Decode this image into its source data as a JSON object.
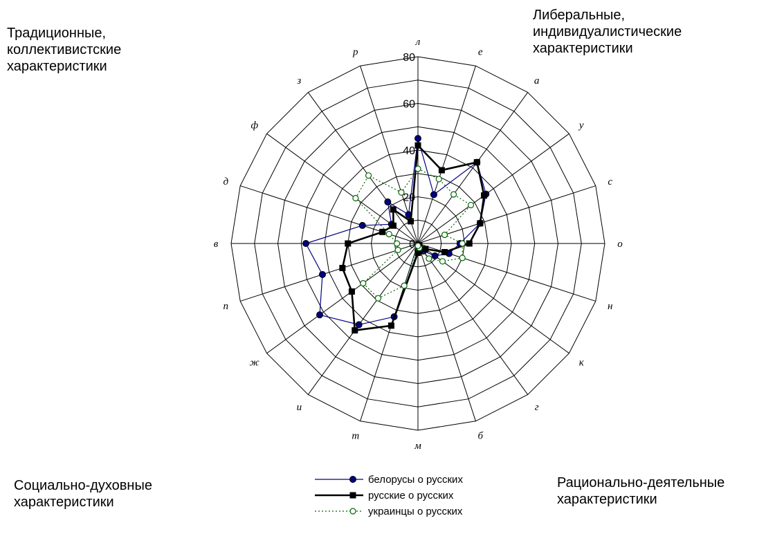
{
  "corners": {
    "top_left": "Традиционные,\nколлективистские\nхарактеристики",
    "top_right": "Либеральные,\nиндивидуалистические\nхарактеристики",
    "bottom_left": "Социально-духовные\nхарактеристики",
    "bottom_right": "Рационально-деятельные\nхарактеристики"
  },
  "chart_data": {
    "type": "radar",
    "categories": [
      "л",
      "е",
      "а",
      "у",
      "с",
      "о",
      "н",
      "к",
      "г",
      "б",
      "м",
      "т",
      "и",
      "ж",
      "п",
      "в",
      "д",
      "ф",
      "з",
      "р"
    ],
    "rlim": [
      0,
      80
    ],
    "rticks": [
      0,
      20,
      40,
      60,
      80
    ],
    "grid": true,
    "legend_position": "bottom",
    "series": [
      {
        "name": "белорусы о русских",
        "color": "#000080",
        "marker": "circle",
        "line": "thin",
        "values": [
          45,
          22,
          43,
          36,
          28,
          18,
          14,
          9,
          4,
          3,
          3,
          33,
          43,
          52,
          43,
          48,
          25,
          14,
          22,
          13
        ]
      },
      {
        "name": "русские о русских",
        "color": "#000000",
        "marker": "square",
        "line": "bold",
        "values": [
          42,
          33,
          43,
          35,
          28,
          22,
          12,
          4,
          1,
          1,
          4,
          37,
          46,
          35,
          34,
          30,
          16,
          13,
          18,
          10
        ]
      },
      {
        "name": "украинцы о русских",
        "color": "#006400",
        "marker": "open-circle",
        "line": "dotted",
        "values": [
          32,
          29,
          26,
          28,
          12,
          19,
          20,
          13,
          8,
          2,
          1,
          19,
          29,
          29,
          9,
          9,
          13,
          33,
          36,
          23
        ]
      }
    ]
  }
}
